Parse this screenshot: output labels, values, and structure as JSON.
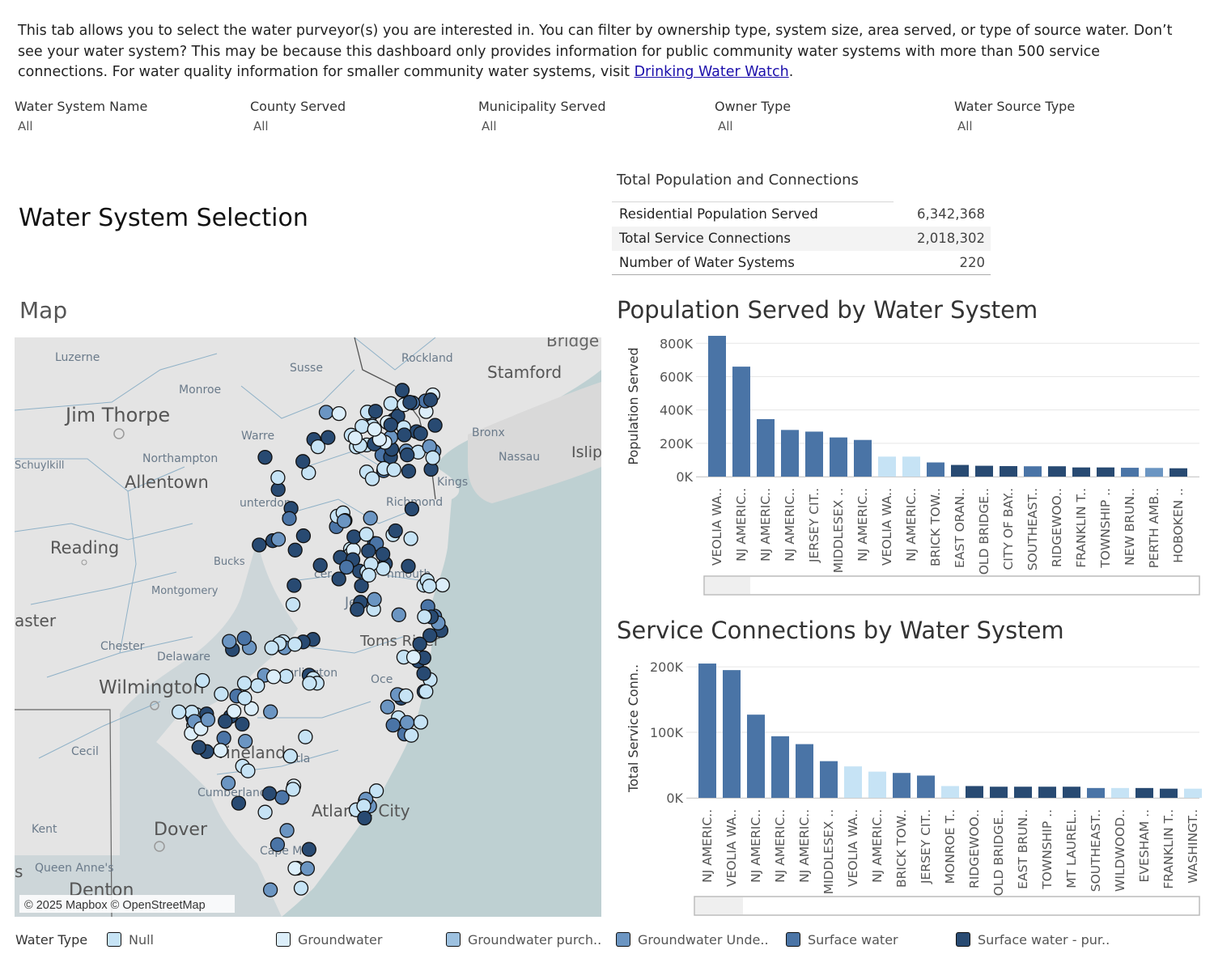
{
  "intro": {
    "text": "This tab allows you to select the water purveyor(s) you are interested in. You can filter by ownership type, system size, area served, or type of source water. Don’t see your water system? This may be because this dashboard only provides information for public community water systems with more than 500 service connections. For water quality information for smaller community water systems, visit ",
    "link_text": "Drinking Water Watch",
    "after_link": "."
  },
  "filters": [
    {
      "label": "Water System Name",
      "value": "All"
    },
    {
      "label": "County Served",
      "value": "All"
    },
    {
      "label": "Municipality Served",
      "value": "All"
    },
    {
      "label": "Owner Type",
      "value": "All"
    },
    {
      "label": "Water Source Type",
      "value": "All"
    }
  ],
  "dashboard_title": "Water System Selection",
  "totals": {
    "title": "Total Population and Connections",
    "rows": [
      {
        "label": "Residential Population Served",
        "value": "6,342,368"
      },
      {
        "label": "Total Service Connections",
        "value": "2,018,302"
      },
      {
        "label": "Number of Water Systems",
        "value": "220"
      }
    ]
  },
  "map": {
    "heading": "Map",
    "attribution": "© 2025 Mapbox © OpenStreetMap",
    "places": [
      "Luzerne",
      "Monroe",
      "Jim Thorpe",
      "Schuylkill",
      "Northampton",
      "Allentown",
      "Reading",
      "Bucks",
      "Montgomery",
      "aster",
      "Chester",
      "Delaware",
      "Wilmington",
      "Cecil",
      "Kent",
      "Dover",
      "Queen Anne's",
      "Denton",
      "s",
      "Susse",
      "Warre",
      "unterdon",
      "Rockland",
      "Bridge",
      "Stamford",
      "Bronx",
      "Nassau",
      "Islip",
      "Kings",
      "Richmond",
      "cer",
      "nmouth",
      "Jerse",
      "Toms River",
      "urlington",
      "Oce",
      "Vineland",
      "Atla",
      "Cumberland",
      "Atlantic City",
      "Cape May"
    ]
  },
  "legend": {
    "title": "Water Type",
    "items": [
      {
        "label": "Null",
        "color": "#c6e3f5"
      },
      {
        "label": "Groundwater",
        "color": "#dceefa"
      },
      {
        "label": "Groundwater purch..",
        "color": "#9dc1e0"
      },
      {
        "label": "Groundwater Unde..",
        "color": "#6b95c2"
      },
      {
        "label": "Surface water",
        "color": "#4a74a6"
      },
      {
        "label": "Surface water - pur..",
        "color": "#284a72"
      }
    ]
  },
  "chart_data": [
    {
      "type": "bar",
      "title": "Population Served by Water System",
      "xlabel": "",
      "ylabel": "Population Served",
      "ylim": [
        0,
        850000
      ],
      "yticks": [
        0,
        200000,
        400000,
        600000,
        800000
      ],
      "ytick_labels": [
        "0K",
        "200K",
        "400K",
        "600K",
        "800K"
      ],
      "categories": [
        "VEOLIA WA..",
        "NJ AMERIC..",
        "NJ AMERIC..",
        "NJ AMERIC..",
        "JERSEY CIT..",
        "MIDDLESEX ..",
        "NJ AMERIC..",
        "VEOLIA WA..",
        "NJ AMERIC..",
        "BRICK TOW..",
        "EAST ORAN..",
        "OLD BRIDGE..",
        "CITY OF BAY..",
        "SOUTHEAST..",
        "RIDGEWOO..",
        "FRANKLIN T..",
        "TOWNSHIP ..",
        "NEW BRUN..",
        "PERTH AMB..",
        "HOBOKEN .."
      ],
      "values": [
        845000,
        660000,
        345000,
        280000,
        270000,
        235000,
        220000,
        120000,
        120000,
        85000,
        70000,
        65000,
        63000,
        62000,
        62000,
        55000,
        55000,
        53000,
        52000,
        50000
      ],
      "water_types": [
        "Surface water",
        "Surface water",
        "Surface water",
        "Surface water",
        "Surface water",
        "Surface water",
        "Surface water",
        "Null",
        "Null",
        "Surface water",
        "Surface water - pur..",
        "Surface water - pur..",
        "Surface water - pur..",
        "Surface water",
        "Surface water - pur..",
        "Surface water - pur..",
        "Surface water - pur..",
        "Surface water",
        "Groundwater Unde..",
        "Surface water - pur.."
      ]
    },
    {
      "type": "bar",
      "title": "Service Connections by Water System",
      "xlabel": "",
      "ylabel": "Total Service Conn..",
      "ylim": [
        0,
        210000
      ],
      "yticks": [
        0,
        100000,
        200000
      ],
      "ytick_labels": [
        "0K",
        "100K",
        "200K"
      ],
      "categories": [
        "NJ AMERIC..",
        "VEOLIA WA..",
        "NJ AMERIC..",
        "NJ AMERIC..",
        "NJ AMERIC..",
        "MIDDLESEX ..",
        "VEOLIA WA..",
        "NJ AMERIC..",
        "BRICK TOW..",
        "JERSEY CIT..",
        "MONROE T..",
        "RIDGEWOO..",
        "OLD BRIDGE..",
        "EAST BRUN..",
        "TOWNSHIP ..",
        "MT LAUREL..",
        "SOUTHEAST..",
        "WILDWOOD..",
        "EVESHAM ..",
        "FRANKLIN T..",
        "WASHINGT.."
      ],
      "values": [
        205000,
        195000,
        127000,
        94000,
        82000,
        56000,
        48000,
        40000,
        38000,
        34000,
        18000,
        18000,
        17000,
        17000,
        17000,
        17000,
        15000,
        15000,
        15000,
        14000,
        14000
      ],
      "water_types": [
        "Surface water",
        "Surface water",
        "Surface water",
        "Surface water",
        "Surface water",
        "Surface water",
        "Null",
        "Null",
        "Surface water",
        "Surface water",
        "Null",
        "Surface water - pur..",
        "Surface water - pur..",
        "Surface water - pur..",
        "Surface water - pur..",
        "Surface water - pur..",
        "Surface water",
        "Null",
        "Surface water - pur..",
        "Surface water - pur..",
        "Null"
      ]
    }
  ]
}
